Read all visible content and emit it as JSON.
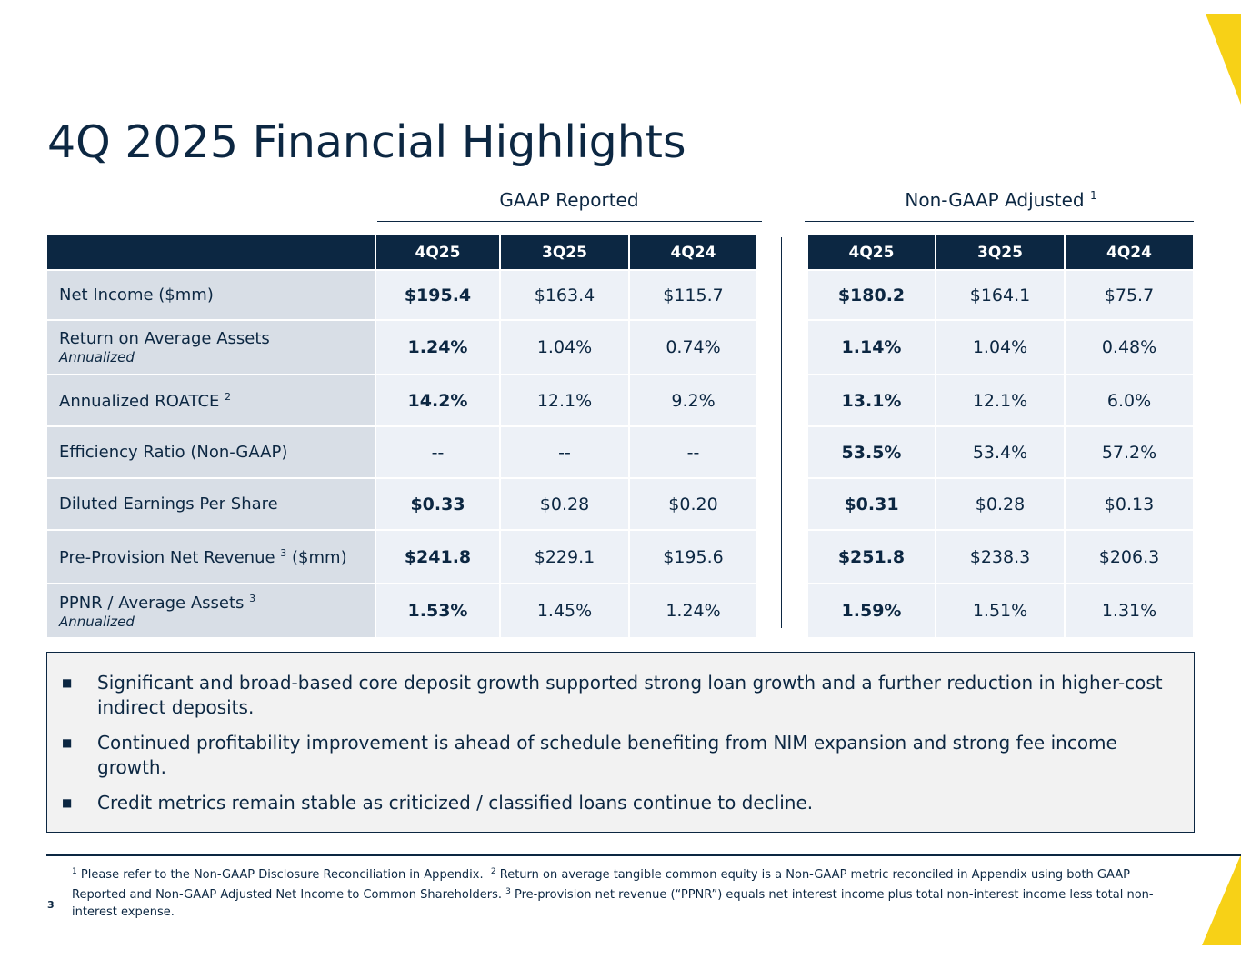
{
  "title": "4Q 2025 Financial Highlights",
  "gaap": {
    "label": "GAAP Reported",
    "columns": [
      "4Q25",
      "3Q25",
      "4Q24"
    ]
  },
  "nongaap": {
    "label": "Non-GAAP Adjusted",
    "label_sup": "1",
    "columns": [
      "4Q25",
      "3Q25",
      "4Q24"
    ]
  },
  "rows": [
    {
      "label": "Net Income ($mm)",
      "sup": "",
      "sublabel": "",
      "gaap": [
        "$195.4",
        "$163.4",
        "$115.7"
      ],
      "nongaap": [
        "$180.2",
        "$164.1",
        "$75.7"
      ]
    },
    {
      "label": "Return on Average Assets",
      "sup": "",
      "sublabel": "Annualized",
      "gaap": [
        "1.24%",
        "1.04%",
        "0.74%"
      ],
      "nongaap": [
        "1.14%",
        "1.04%",
        "0.48%"
      ]
    },
    {
      "label": "Annualized ROATCE",
      "sup": "2",
      "sublabel": "",
      "gaap": [
        "14.2%",
        "12.1%",
        "9.2%"
      ],
      "nongaap": [
        "13.1%",
        "12.1%",
        "6.0%"
      ]
    },
    {
      "label": "Efficiency Ratio (Non-GAAP)",
      "sup": "",
      "sublabel": "",
      "gaap": [
        "--",
        "--",
        "--"
      ],
      "nongaap": [
        "53.5%",
        "53.4%",
        "57.2%"
      ]
    },
    {
      "label": "Diluted Earnings Per Share",
      "sup": "",
      "sublabel": "",
      "gaap": [
        "$0.33",
        "$0.28",
        "$0.20"
      ],
      "nongaap": [
        "$0.31",
        "$0.28",
        "$0.13"
      ]
    },
    {
      "label": "Pre-Provision Net Revenue",
      "sup": "3",
      "label_suffix": "($mm)",
      "sublabel": "",
      "gaap": [
        "$241.8",
        "$229.1",
        "$195.6"
      ],
      "nongaap": [
        "$251.8",
        "$238.3",
        "$206.3"
      ]
    },
    {
      "label": "PPNR / Average Assets",
      "sup": "3",
      "sublabel": "Annualized",
      "gaap": [
        "1.53%",
        "1.45%",
        "1.24%"
      ],
      "nongaap": [
        "1.59%",
        "1.51%",
        "1.31%"
      ]
    }
  ],
  "bullets": [
    "Significant and broad-based core deposit growth supported strong loan growth and a further reduction in higher-cost indirect deposits.",
    "Continued profitability improvement is ahead of schedule benefiting from NIM expansion and strong fee income growth.",
    "Credit metrics remain stable as criticized / classified loans continue to decline."
  ],
  "bullet_marker": "■",
  "footnotes": {
    "n1": "1",
    "t1": "Please refer to the Non-GAAP Disclosure Reconciliation in Appendix.",
    "n2": "2",
    "t2": "Return on average tangible common equity is a Non-GAAP metric reconciled in Appendix using both GAAP Reported and Non-GAAP Adjusted Net Income to Common Shareholders.",
    "n3": "3",
    "t3": "Pre-provision net revenue (“PPNR”) equals net interest income plus total non-interest income less total non-interest expense."
  },
  "page_number": "3",
  "colors": {
    "navy": "#0c2742",
    "label_bg": "#d8dee6",
    "cell_bg": "#edf1f7",
    "accent_yellow": "#f7d117"
  }
}
